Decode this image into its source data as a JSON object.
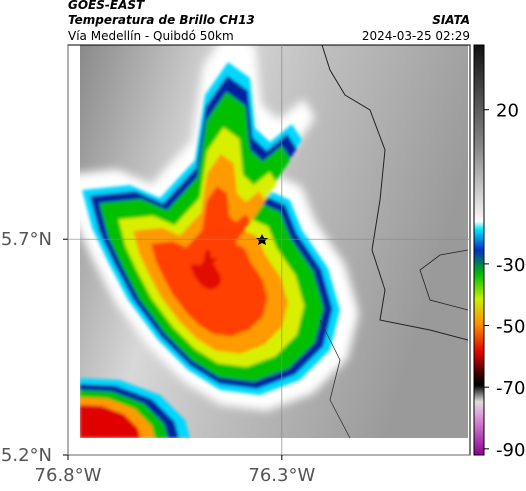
{
  "header": {
    "title": "GOES-EAST",
    "subtitle": "Temperatura de Brillo CH13",
    "place": "Vía Medellín - Quibdó 50km",
    "source": "SIATA",
    "datetime": "2024-03-25 02:29"
  },
  "map": {
    "lat_lim": [
      5.2,
      6.15
    ],
    "lon_lim": [
      -76.8,
      -75.86
    ],
    "lat_ticks": [
      {
        "value": 5.7,
        "label": "5.7°N"
      },
      {
        "value": 5.2,
        "label": "5.2°N"
      }
    ],
    "lon_ticks": [
      {
        "value": -76.8,
        "label": "76.8°W"
      },
      {
        "value": -76.3,
        "label": "76.3°W"
      }
    ]
  },
  "colorbar": {
    "lim": [
      -92,
      41
    ],
    "ticks": [
      20,
      -30,
      -50,
      -70,
      -90
    ]
  }
}
